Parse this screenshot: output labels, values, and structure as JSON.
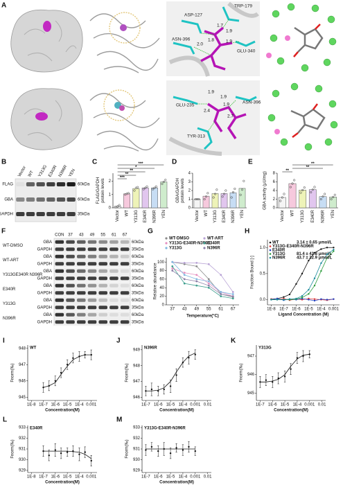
{
  "figure": {
    "panel_labels": [
      "A",
      "B",
      "C",
      "D",
      "E",
      "F",
      "G",
      "H",
      "I",
      "J",
      "K",
      "L",
      "M"
    ],
    "A": {
      "row1": {
        "residues": [
          "ASP-127",
          "TRP-179",
          "ASN-396",
          "GLU-340"
        ],
        "distances": [
          "1.7",
          "1.9",
          "2.0",
          "1.8",
          "1.9"
        ]
      },
      "row2": {
        "residues": [
          "GLU-235",
          "ASN-396",
          "TYR-313"
        ],
        "distances": [
          "1.9",
          "1.9",
          "2.4",
          "2.7",
          "1.9"
        ]
      }
    },
    "B": {
      "lanes": [
        "Vector",
        "WT",
        "Y313G",
        "E340R",
        "N396R",
        "YEN"
      ],
      "rows": [
        "FLAG",
        "GBA",
        "GAPDH"
      ],
      "sizes": [
        "60kDa",
        "60kDa",
        "35kDa"
      ]
    },
    "F": {
      "lanes": [
        "CON",
        "37",
        "43",
        "49",
        "55",
        "61",
        "67"
      ],
      "groups": [
        {
          "name": "WT-DMSO",
          "rows": [
            "GBA",
            "GAPDH"
          ],
          "sizes": [
            "60kDa",
            "35kDa"
          ]
        },
        {
          "name": "WT-ART",
          "rows": [
            "GBA",
            "GAPDH"
          ],
          "sizes": [
            "60kDa",
            "35kDa"
          ]
        },
        {
          "name": "Y313GE340R N396R",
          "rows": [
            "GBA",
            "GAPDH"
          ],
          "sizes": [
            "60kDa",
            "35kDa"
          ]
        },
        {
          "name": "E340R",
          "rows": [
            "GBA",
            "GAPDH"
          ],
          "sizes": [
            "60kDa",
            "35kDa"
          ]
        },
        {
          "name": "Y313G",
          "rows": [
            "GBA",
            "GAPDH"
          ],
          "sizes": [
            "60kDa",
            "35kDa"
          ]
        },
        {
          "name": "N396R",
          "rows": [
            "GBA",
            "GAPDH"
          ],
          "sizes": [
            "60kDa",
            "35kDa"
          ]
        }
      ]
    }
  },
  "chart_data": [
    {
      "type": "bar",
      "ylabel": [
        "FLAG/GAPDH",
        "protein levels"
      ],
      "categories": [
        "Vector",
        "WT",
        "Y313G",
        "E340R",
        "N396R",
        "YEN"
      ],
      "values": [
        0.12,
        1.05,
        1.45,
        1.5,
        1.5,
        1.95
      ],
      "points": [
        [
          0.05,
          0.1,
          0.2
        ],
        [
          1.0,
          1.05,
          1.1
        ],
        [
          1.3,
          1.5,
          1.55
        ],
        [
          1.4,
          1.5,
          1.6
        ],
        [
          1.4,
          1.5,
          1.6
        ],
        [
          1.8,
          1.95,
          2.1
        ]
      ],
      "colors": [
        "#f4f4f4",
        "#f6c9dd",
        "#eef3b8",
        "#e1c6ee",
        "#c7ddf4",
        "#cfeccd"
      ],
      "ylim": [
        0,
        2.6
      ],
      "yticks": [
        0,
        1,
        2
      ],
      "significance": [
        "***",
        "*",
        "**",
        "**",
        "***"
      ]
    },
    {
      "type": "bar",
      "ylabel": [
        "GBA/GAPDH",
        "protein levels"
      ],
      "categories": [
        "Vector",
        "WT",
        "Y313G",
        "E340R",
        "N396R",
        "YEN"
      ],
      "values": [
        1.0,
        1.35,
        1.65,
        1.65,
        1.75,
        2.25
      ],
      "points": [
        [
          1.0,
          1.0,
          1.0
        ],
        [
          1.0,
          1.3,
          1.7
        ],
        [
          1.2,
          1.6,
          2.1
        ],
        [
          1.3,
          1.6,
          2.0
        ],
        [
          1.2,
          1.8,
          2.2
        ],
        [
          1.5,
          2.1,
          3.1
        ]
      ],
      "colors": [
        "#f4f4f4",
        "#f6c9dd",
        "#eef3b8",
        "#e1c6ee",
        "#c7ddf4",
        "#cfeccd"
      ],
      "ylim": [
        0,
        4
      ],
      "yticks": [
        0,
        1,
        2,
        3,
        4
      ]
    },
    {
      "type": "bar",
      "ylabel": [
        "GBA activity (μU/mg)"
      ],
      "categories": [
        "Vector",
        "WT",
        "Y313G",
        "E340R",
        "N396R",
        "YEN"
      ],
      "values": [
        2.4,
        5.6,
        4.1,
        4.2,
        2.6,
        2.5
      ],
      "points": [
        [
          1.6,
          2.4,
          3.2
        ],
        [
          4.8,
          5.6,
          6.4
        ],
        [
          3.5,
          4.1,
          4.7
        ],
        [
          3.6,
          4.2,
          4.8
        ],
        [
          2.0,
          2.6,
          3.2
        ],
        [
          2.0,
          2.5,
          3.0
        ]
      ],
      "colors": [
        "#f4f4f4",
        "#f6c9dd",
        "#eef3b8",
        "#e1c6ee",
        "#c7ddf4",
        "#cfeccd"
      ],
      "ylim": [
        0,
        8
      ],
      "yticks": [
        0,
        2,
        4,
        6,
        8
      ],
      "significance": [
        "**",
        "**",
        "**"
      ]
    },
    {
      "type": "line",
      "xlabel": "Temperature(°C)",
      "ylabel": "Relative abundance",
      "x": [
        37,
        43,
        49,
        55,
        61,
        67
      ],
      "xlim": [
        34,
        70
      ],
      "xticks": [
        37,
        43,
        49,
        55,
        61,
        67
      ],
      "ylim": [
        0,
        110
      ],
      "yticks": [
        0,
        20,
        40,
        60,
        80,
        100
      ],
      "series": [
        {
          "name": "WT-DMSO",
          "color": "#8a8a8a",
          "values": [
            100,
            95,
            90,
            60,
            25,
            18
          ]
        },
        {
          "name": "WT-ART",
          "color": "#b9a4d6",
          "values": [
            100,
            98,
            98,
            95,
            70,
            30
          ]
        },
        {
          "name": "Y313G-E340R-N396R",
          "color": "#e58fc0",
          "values": [
            85,
            75,
            70,
            50,
            30,
            20
          ]
        },
        {
          "name": "E340R",
          "color": "#3f9f8f",
          "values": [
            90,
            50,
            45,
            40,
            20,
            15
          ]
        },
        {
          "name": "Y313G",
          "color": "#7fb6e0",
          "values": [
            100,
            70,
            60,
            55,
            30,
            25
          ]
        },
        {
          "name": "N396R",
          "color": "#8c7fa8",
          "values": [
            80,
            60,
            55,
            45,
            25,
            20
          ]
        }
      ]
    },
    {
      "type": "scatter",
      "log_x": true,
      "xlabel": "Ligand Concentration (M)",
      "ylabel": "Fraction Bound [-]",
      "x": [
        1e-08,
        3e-08,
        1e-07,
        3e-07,
        1e-06,
        3e-06,
        1e-05,
        3e-05,
        0.0001,
        0.0003,
        0.001
      ],
      "xlim": [
        5e-09,
        0.003
      ],
      "xticks": [
        {
          "value": 1e-08,
          "label": "1E-8"
        },
        {
          "value": 1e-07,
          "label": "1E-7"
        },
        {
          "value": 1e-06,
          "label": "1E-6"
        },
        {
          "value": 1e-05,
          "label": "1E-5"
        },
        {
          "value": 0.0001,
          "label": "1E-4"
        },
        0.001
      ],
      "ylim": [
        -0.1,
        1.15
      ],
      "yticks": [
        {
          "value": 0,
          "label": "0.0"
        },
        0.5,
        {
          "value": 1,
          "label": "1.0"
        }
      ],
      "series": [
        {
          "name": "WT",
          "note": "3.14 ± 0.65 μmol/L",
          "color": "#111111",
          "values": [
            0.01,
            0.02,
            0.05,
            0.1,
            0.3,
            0.5,
            0.75,
            0.9,
            0.97,
            1.0,
            1.0
          ]
        },
        {
          "name": "Y313G-E340R-N396R",
          "color": "#e03030",
          "values": [
            0.01,
            0,
            0.02,
            -0.01,
            0.01,
            0,
            0.02,
            0.01,
            0,
            -0.01,
            0.01
          ]
        },
        {
          "name": "E340R",
          "color": "#2040c0",
          "values": [
            0,
            0.02,
            -0.01,
            0.01,
            0,
            0.02,
            0,
            -0.02,
            0.01,
            0,
            0.01
          ]
        },
        {
          "name": "Y313G",
          "note": "81.4 ± 42.8 μmol/L",
          "color": "#2a9a3a",
          "values": [
            0,
            0,
            0,
            0,
            0.01,
            0.04,
            0.11,
            0.27,
            0.55,
            0.8,
            0.93
          ]
        },
        {
          "name": "N396R",
          "note": "43.7 ± 22.9 μmol/L",
          "color": "#1a8a9a",
          "values": [
            0,
            0,
            0,
            0.01,
            0.02,
            0.07,
            0.19,
            0.41,
            0.7,
            0.87,
            0.96
          ]
        }
      ]
    },
    {
      "type": "scatter",
      "log_x": true,
      "title": "WT",
      "xlabel": "Concentration(M)",
      "ylabel": "Fnorm(‰)",
      "x": [
        1e-07,
        3e-07,
        1e-06,
        3e-06,
        1e-05,
        3e-05,
        0.0001,
        0.0003,
        0.001
      ],
      "xlim": [
        5e-09,
        0.003
      ],
      "xticks": [
        {
          "value": 1e-08,
          "label": "1E-8"
        },
        {
          "value": 1e-07,
          "label": "1E-7"
        },
        {
          "value": 1e-06,
          "label": "1E-6"
        },
        {
          "value": 1e-05,
          "label": "1E-5"
        },
        {
          "value": 0.0001,
          "label": "1E-4"
        },
        0.001
      ],
      "ylim": [
        944.8,
        948.2
      ],
      "yticks": [
        945,
        946,
        947,
        948
      ],
      "series": [
        {
          "color": "#111111",
          "values": [
            945.6,
            945.7,
            946.0,
            946.5,
            947.0,
            947.4,
            947.5,
            947.6,
            947.6
          ],
          "errors": [
            0.3,
            0.3,
            0.3,
            0.3,
            0.3,
            0.3,
            0.3,
            0.2,
            0.3
          ],
          "fit": [
            945.6,
            945.7,
            945.9,
            946.4,
            946.9,
            947.3,
            947.5,
            947.6,
            947.6
          ]
        }
      ]
    },
    {
      "type": "scatter",
      "log_x": true,
      "title": "N396R",
      "xlabel": "Concentration(M)",
      "ylabel": "Fnorm(‰)",
      "x": [
        1e-07,
        3e-07,
        1e-06,
        3e-06,
        1e-05,
        3e-05,
        0.0001,
        0.0003,
        0.001
      ],
      "xlim": [
        5e-08,
        0.02
      ],
      "xticks": [
        {
          "value": 1e-07,
          "label": "1E-7"
        },
        {
          "value": 1e-06,
          "label": "1E-6"
        },
        {
          "value": 1e-05,
          "label": "1E-5"
        },
        {
          "value": 0.0001,
          "label": "1E-4"
        },
        0.001,
        0.01
      ],
      "ylim": [
        945.8,
        949.3
      ],
      "yticks": [
        946,
        947,
        948,
        949
      ],
      "series": [
        {
          "color": "#111111",
          "values": [
            946.4,
            946.5,
            946.4,
            946.5,
            946.7,
            947.4,
            948.2,
            948.5,
            948.7
          ],
          "errors": [
            0.3,
            0.4,
            0.3,
            0.3,
            0.4,
            0.4,
            0.3,
            0.4,
            0.3
          ],
          "fit": [
            946.4,
            946.4,
            946.45,
            946.6,
            947.0,
            947.6,
            948.2,
            948.6,
            948.8
          ]
        }
      ]
    },
    {
      "type": "scatter",
      "log_x": true,
      "title": "Y313G",
      "xlabel": "Concentration(M)",
      "ylabel": "Fnorm(‰)",
      "x": [
        1e-07,
        3e-07,
        1e-06,
        3e-06,
        1e-05,
        3e-05,
        0.0001,
        0.0003,
        0.001
      ],
      "xlim": [
        5e-08,
        0.02
      ],
      "xticks": [
        {
          "value": 1e-07,
          "label": "1E-7"
        },
        {
          "value": 1e-06,
          "label": "1E-6"
        },
        {
          "value": 1e-05,
          "label": "1E-5"
        },
        {
          "value": 0.0001,
          "label": "1E-4"
        },
        0.001,
        0.01
      ],
      "ylim": [
        944.6,
        947.6
      ],
      "yticks": [
        945,
        946,
        947
      ],
      "series": [
        {
          "color": "#111111",
          "values": [
            945.6,
            945.7,
            945.6,
            945.8,
            945.9,
            946.3,
            946.9,
            947.0,
            947.1
          ],
          "errors": [
            0.3,
            0.3,
            0.3,
            0.3,
            0.3,
            0.3,
            0.3,
            0.3,
            0.2
          ],
          "fit": [
            945.6,
            945.6,
            945.65,
            945.75,
            946.0,
            946.45,
            946.85,
            947.05,
            947.1
          ]
        }
      ]
    },
    {
      "type": "scatter",
      "log_x": true,
      "title": "E340R",
      "xlabel": "Concentration(M)",
      "ylabel": "Fnorm(‰)",
      "x": [
        1e-07,
        3e-07,
        1e-06,
        3e-06,
        1e-05,
        3e-05,
        0.0001,
        0.0003,
        0.001
      ],
      "xlim": [
        5e-09,
        0.003
      ],
      "xticks": [
        {
          "value": 1e-08,
          "label": "1E-8"
        },
        {
          "value": 1e-07,
          "label": "1E-7"
        },
        {
          "value": 1e-06,
          "label": "1E-6"
        },
        {
          "value": 1e-05,
          "label": "1E-5"
        },
        {
          "value": 0.0001,
          "label": "1E-4"
        },
        0.001
      ],
      "ylim": [
        928.8,
        933.2
      ],
      "yticks": [
        929,
        930,
        931,
        932,
        933
      ],
      "series": [
        {
          "color": "#111111",
          "values": [
            930.8,
            930.4,
            930.9,
            930.6,
            930.7,
            930.8,
            930.5,
            930.7,
            929.9
          ],
          "errors": [
            0.5,
            0.5,
            0.6,
            0.5,
            0.4,
            0.5,
            0.6,
            0.5,
            0.5
          ],
          "fit": [
            930.8,
            930.8,
            930.8,
            930.8,
            930.8,
            930.75,
            930.7,
            930.5,
            930.1
          ]
        }
      ]
    },
    {
      "type": "scatter",
      "log_x": true,
      "title": "Y313G-E340R-N396R",
      "xlabel": "Concentration(M)",
      "ylabel": "Fnorm(‰)",
      "x": [
        1e-07,
        3e-07,
        1e-06,
        3e-06,
        1e-05,
        3e-05,
        0.0001,
        0.0003,
        0.001
      ],
      "xlim": [
        5e-08,
        0.02
      ],
      "xticks": [
        {
          "value": 1e-07,
          "label": "1E-7"
        },
        {
          "value": 1e-06,
          "label": "1E-6"
        },
        {
          "value": 1e-05,
          "label": "1E-5"
        },
        {
          "value": 0.0001,
          "label": "1E-4"
        },
        0.001,
        0.01
      ],
      "ylim": [
        928.8,
        933.2
      ],
      "yticks": [
        929,
        930,
        931,
        932,
        933
      ],
      "series": [
        {
          "color": "#111111",
          "values": [
            930.9,
            931.2,
            930.8,
            931.0,
            930.6,
            931.1,
            930.9,
            931.2,
            930.8
          ],
          "errors": [
            0.5,
            0.4,
            0.5,
            0.6,
            0.5,
            0.4,
            0.5,
            0.5,
            0.4
          ],
          "fit": [
            931.0,
            931.0,
            931.0,
            931.0,
            931.0,
            931.0,
            931.0,
            931.0,
            931.0
          ]
        }
      ]
    }
  ]
}
